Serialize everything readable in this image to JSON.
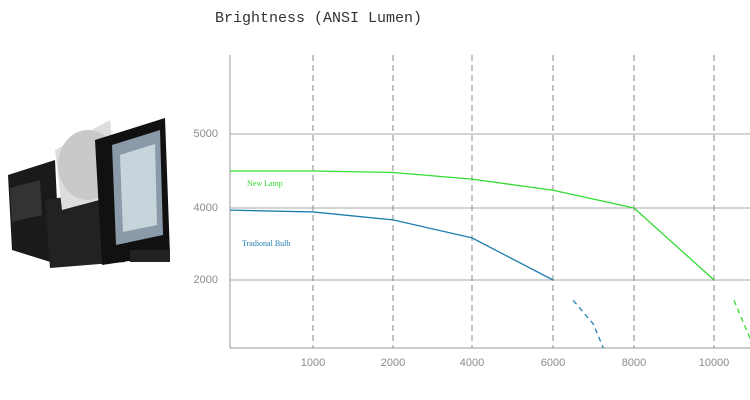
{
  "chart_data": {
    "type": "line",
    "title": "Brightness (ANSI Lumen)",
    "xlim": [
      0,
      10900
    ],
    "xticks": [
      1000,
      2000,
      4000,
      6000,
      8000,
      10000
    ],
    "ylim": [
      0,
      6000
    ],
    "yticks": [
      2000,
      4000,
      5000
    ],
    "grid": true,
    "series": [
      {
        "name": "New Lamp",
        "color": "#33dd33",
        "dashed_from_x": 10000,
        "x": [
          0,
          1000,
          2000,
          4000,
          6000,
          8000,
          10000,
          10500,
          10900
        ],
        "values": [
          4500,
          4500,
          4480,
          4390,
          4240,
          4000,
          2000,
          1400,
          290
        ]
      },
      {
        "name": "Tradional Bulb",
        "color": "#1f7fb0",
        "dashed_from_x": 6000,
        "x": [
          0,
          1000,
          2000,
          4000,
          6000,
          6500,
          7000,
          7240
        ],
        "values": [
          3940,
          3890,
          3670,
          3170,
          2000,
          1400,
          700,
          0
        ]
      }
    ]
  }
}
